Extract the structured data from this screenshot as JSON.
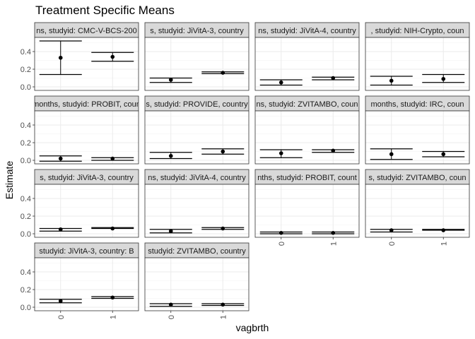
{
  "chart_data": {
    "type": "scatter",
    "title": "Treatment Specific Means",
    "xlabel": "vagbrth",
    "ylabel": "Estimate",
    "categories": [
      "0",
      "1"
    ],
    "ylim": [
      -0.04,
      0.56
    ],
    "yticks": [
      0.0,
      0.2,
      0.4
    ],
    "ytick_labels": [
      "0.0",
      "0.2",
      "0.4"
    ],
    "grid": true,
    "facet_strip_color": "#d9d9d9",
    "panel_border_color": "#333333",
    "point_color": "#000000",
    "panels": [
      {
        "strip": "ns, studyid: CMC-V-BCS-200",
        "points": [
          {
            "x": "0",
            "y": 0.33,
            "lower": 0.14,
            "upper": 0.52
          },
          {
            "x": "1",
            "y": 0.34,
            "lower": 0.29,
            "upper": 0.39
          }
        ]
      },
      {
        "strip": "s, studyid: JiVitA-3, country",
        "points": [
          {
            "x": "0",
            "y": 0.08,
            "lower": 0.05,
            "upper": 0.1
          },
          {
            "x": "1",
            "y": 0.16,
            "lower": 0.15,
            "upper": 0.17
          }
        ]
      },
      {
        "strip": "ns, studyid: JiVitA-4, country",
        "points": [
          {
            "x": "0",
            "y": 0.05,
            "lower": 0.02,
            "upper": 0.08
          },
          {
            "x": "1",
            "y": 0.1,
            "lower": 0.08,
            "upper": 0.11
          }
        ]
      },
      {
        "strip": ", studyid: NIH-Crypto, coun",
        "points": [
          {
            "x": "0",
            "y": 0.07,
            "lower": 0.02,
            "upper": 0.12
          },
          {
            "x": "1",
            "y": 0.09,
            "lower": 0.05,
            "upper": 0.14
          }
        ]
      },
      {
        "strip": "months, studyid: PROBIT, coun",
        "points": [
          {
            "x": "0",
            "y": 0.02,
            "lower": -0.01,
            "upper": 0.05
          },
          {
            "x": "1",
            "y": 0.02,
            "lower": 0.0,
            "upper": 0.03
          }
        ]
      },
      {
        "strip": "s, studyid: PROVIDE, country",
        "points": [
          {
            "x": "0",
            "y": 0.05,
            "lower": 0.02,
            "upper": 0.09
          },
          {
            "x": "1",
            "y": 0.1,
            "lower": 0.07,
            "upper": 0.13
          }
        ]
      },
      {
        "strip": "ns, studyid: ZVITAMBO, coun",
        "points": [
          {
            "x": "0",
            "y": 0.08,
            "lower": 0.03,
            "upper": 0.12
          },
          {
            "x": "1",
            "y": 0.11,
            "lower": 0.09,
            "upper": 0.12
          }
        ]
      },
      {
        "strip": "months, studyid: IRC, coun",
        "points": [
          {
            "x": "0",
            "y": 0.07,
            "lower": 0.01,
            "upper": 0.13
          },
          {
            "x": "1",
            "y": 0.07,
            "lower": 0.04,
            "upper": 0.1
          }
        ]
      },
      {
        "strip": "s, studyid: JiVitA-3, country",
        "points": [
          {
            "x": "0",
            "y": 0.05,
            "lower": 0.03,
            "upper": 0.06
          },
          {
            "x": "1",
            "y": 0.06,
            "lower": 0.06,
            "upper": 0.07
          }
        ]
      },
      {
        "strip": "ns, studyid: JiVitA-4, country",
        "points": [
          {
            "x": "0",
            "y": 0.03,
            "lower": 0.01,
            "upper": 0.05
          },
          {
            "x": "1",
            "y": 0.06,
            "lower": 0.05,
            "upper": 0.07
          }
        ]
      },
      {
        "strip": "nths, studyid: PROBIT, count",
        "points": [
          {
            "x": "0",
            "y": 0.01,
            "lower": 0.0,
            "upper": 0.02
          },
          {
            "x": "1",
            "y": 0.01,
            "lower": 0.0,
            "upper": 0.02
          }
        ]
      },
      {
        "strip": "s, studyid: ZVITAMBO, coun",
        "points": [
          {
            "x": "0",
            "y": 0.04,
            "lower": 0.02,
            "upper": 0.05
          },
          {
            "x": "1",
            "y": 0.04,
            "lower": 0.04,
            "upper": 0.05
          }
        ]
      },
      {
        "strip": "studyid: JiVitA-3, country: B",
        "points": [
          {
            "x": "0",
            "y": 0.07,
            "lower": 0.05,
            "upper": 0.09
          },
          {
            "x": "1",
            "y": 0.11,
            "lower": 0.1,
            "upper": 0.12
          }
        ]
      },
      {
        "strip": "studyid: ZVITAMBO, country",
        "points": [
          {
            "x": "0",
            "y": 0.03,
            "lower": 0.01,
            "upper": 0.04
          },
          {
            "x": "1",
            "y": 0.03,
            "lower": 0.02,
            "upper": 0.04
          }
        ]
      }
    ]
  }
}
